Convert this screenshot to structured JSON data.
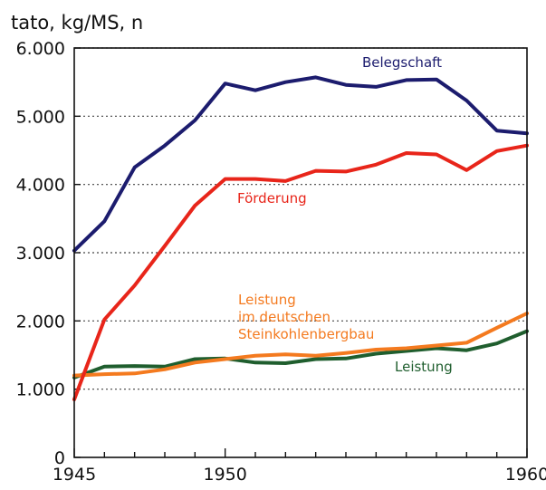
{
  "chart_data": {
    "type": "line",
    "ylabel": "tato, kg/MS, n",
    "xlabel": "",
    "title": "",
    "xlim": [
      1945,
      1960
    ],
    "ylim": [
      0,
      6000
    ],
    "x_ticks": [
      1945,
      1950,
      1960
    ],
    "x_tick_labels": [
      "1945",
      "1950",
      "1960"
    ],
    "y_ticks": [
      0,
      1000,
      2000,
      3000,
      4000,
      5000,
      6000
    ],
    "y_tick_labels": [
      "0",
      "1.000",
      "2.000",
      "3.000",
      "4.000",
      "5.000",
      "6.000"
    ],
    "grid": "horizontal dotted",
    "series": [
      {
        "name": "Belegschaft",
        "label_lines": [
          "Belegschaft"
        ],
        "color": "#1c1c6e",
        "x": [
          1945,
          1946,
          1947,
          1948,
          1949,
          1950,
          1951,
          1952,
          1953,
          1954,
          1955,
          1956,
          1957,
          1958,
          1959,
          1960
        ],
        "values": [
          3030,
          3460,
          4250,
          4570,
          4940,
          5480,
          5380,
          5500,
          5570,
          5460,
          5430,
          5530,
          5540,
          5230,
          4790,
          4750
        ]
      },
      {
        "name": "Förderung",
        "label_lines": [
          "Förderung"
        ],
        "color": "#e8251a",
        "x": [
          1945,
          1946,
          1947,
          1948,
          1949,
          1950,
          1951,
          1952,
          1953,
          1954,
          1955,
          1956,
          1957,
          1958,
          1959,
          1960
        ],
        "values": [
          850,
          2020,
          2520,
          3100,
          3690,
          4080,
          4080,
          4050,
          4200,
          4190,
          4290,
          4460,
          4440,
          4210,
          4490,
          4570
        ]
      },
      {
        "name": "Leistung im deutschen Steinkohlenbergbau",
        "label_lines": [
          "Leistung",
          "im deutschen",
          "Steinkohlenbergbau"
        ],
        "color": "#f47a1f",
        "x": [
          1945,
          1946,
          1947,
          1948,
          1949,
          1950,
          1951,
          1952,
          1953,
          1954,
          1955,
          1956,
          1957,
          1958,
          1959,
          1960
        ],
        "values": [
          1200,
          1220,
          1230,
          1290,
          1390,
          1440,
          1490,
          1510,
          1490,
          1530,
          1580,
          1600,
          1640,
          1680,
          1900,
          2110
        ]
      },
      {
        "name": "Leistung",
        "label_lines": [
          "Leistung"
        ],
        "color": "#1f5e2e",
        "x": [
          1945,
          1946,
          1947,
          1948,
          1949,
          1950,
          1951,
          1952,
          1953,
          1954,
          1955,
          1956,
          1957,
          1958,
          1959,
          1960
        ],
        "values": [
          1170,
          1330,
          1340,
          1330,
          1440,
          1450,
          1390,
          1380,
          1440,
          1450,
          1520,
          1560,
          1600,
          1570,
          1670,
          1850
        ]
      }
    ]
  }
}
